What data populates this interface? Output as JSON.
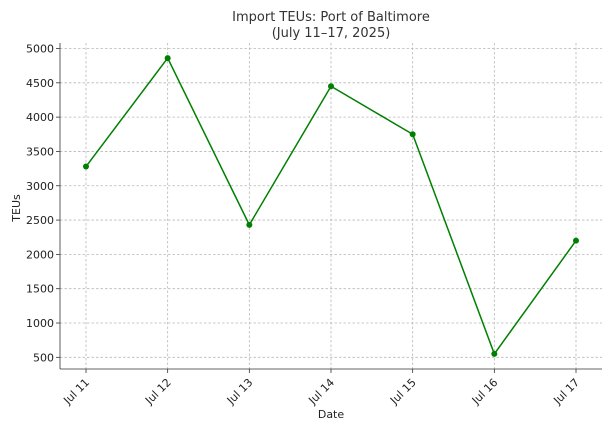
{
  "chart_data": {
    "type": "line",
    "title": [
      "Import TEUs: Port of Baltimore",
      "(July 11–17, 2025)"
    ],
    "xlabel": "Date",
    "ylabel": "TEUs",
    "categories": [
      "Jul 11",
      "Jul 12",
      "Jul 13",
      "Jul 14",
      "Jul 15",
      "Jul 16",
      "Jul 17"
    ],
    "series": [
      {
        "values": [
          3280,
          4860,
          2430,
          4450,
          3750,
          550,
          2200
        ],
        "color": "#008000"
      }
    ],
    "yticks": [
      500,
      1000,
      1500,
      2000,
      2500,
      3000,
      3500,
      4000,
      4500,
      5000
    ],
    "ylim": [
      330,
      5080
    ],
    "grid": true,
    "x_tick_rotation": -45
  }
}
